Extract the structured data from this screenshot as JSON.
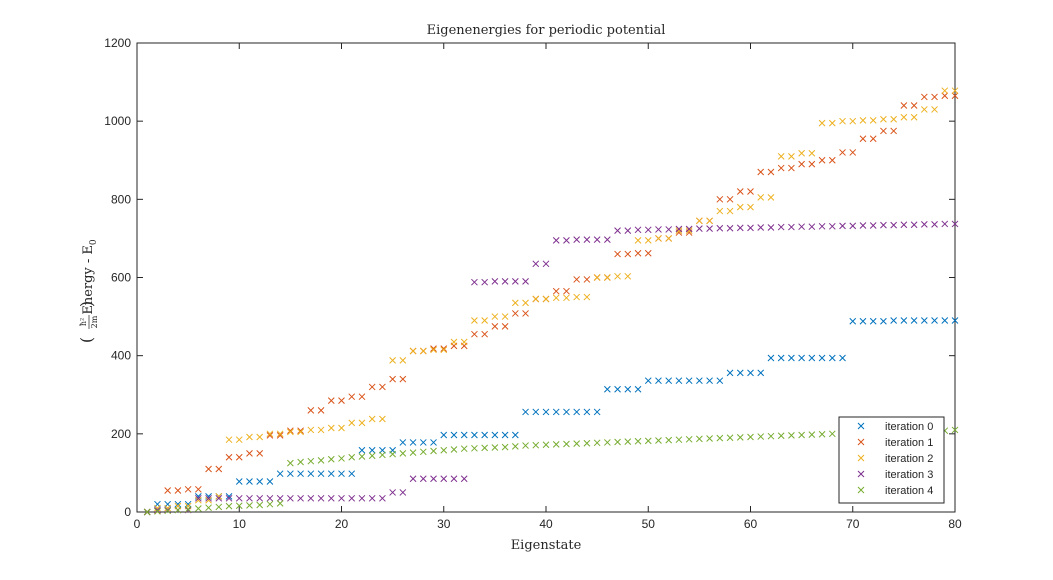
{
  "chart_data": {
    "type": "scatter",
    "title": "Eigenenergies for periodic potential",
    "xlabel": "Eigenstate",
    "ylabel": "Energy - E",
    "ylabel_sub": "0",
    "ylabel_unit_num": "ħ²",
    "ylabel_unit_den": "2m",
    "xlim": [
      0,
      80
    ],
    "ylim": [
      0,
      1200
    ],
    "xticks": [
      0,
      10,
      20,
      30,
      40,
      50,
      60,
      70,
      80
    ],
    "yticks": [
      0,
      200,
      400,
      600,
      800,
      1000,
      1200
    ],
    "grid": false,
    "legend_position": "bottom-right",
    "marker": "×",
    "series": [
      {
        "name": "iteration 0",
        "color": "#0072BD",
        "x": [
          1,
          2,
          3,
          4,
          5,
          6,
          7,
          8,
          9,
          10,
          11,
          12,
          13,
          14,
          15,
          16,
          17,
          18,
          19,
          20,
          21,
          22,
          23,
          24,
          25,
          26,
          27,
          28,
          29,
          30,
          31,
          32,
          33,
          34,
          35,
          36,
          37,
          38,
          39,
          40,
          41,
          42,
          43,
          44,
          45,
          46,
          47,
          48,
          49,
          50,
          51,
          52,
          53,
          54,
          55,
          56,
          57,
          58,
          59,
          60,
          61,
          62,
          63,
          64,
          65,
          66,
          67,
          68,
          69,
          70,
          71,
          72,
          73,
          74,
          75,
          76,
          77,
          78,
          79,
          80
        ],
        "y": [
          0,
          20,
          20,
          20,
          20,
          40,
          40,
          40,
          40,
          78,
          78,
          78,
          78,
          98,
          98,
          98,
          98,
          98,
          98,
          98,
          98,
          158,
          158,
          158,
          158,
          178,
          178,
          178,
          178,
          197,
          197,
          197,
          197,
          197,
          197,
          197,
          197,
          256,
          256,
          256,
          256,
          256,
          256,
          256,
          256,
          314,
          314,
          314,
          314,
          336,
          336,
          336,
          336,
          336,
          336,
          336,
          336,
          356,
          356,
          356,
          356,
          394,
          394,
          394,
          394,
          394,
          394,
          394,
          394,
          488,
          488,
          488,
          488,
          490,
          490,
          490,
          490,
          490,
          490,
          490
        ]
      },
      {
        "name": "iteration 1",
        "color": "#D95319",
        "x": [
          1,
          2,
          3,
          4,
          5,
          6,
          7,
          8,
          9,
          10,
          11,
          12,
          13,
          14,
          15,
          16,
          17,
          18,
          19,
          20,
          21,
          22,
          23,
          24,
          25,
          26,
          27,
          28,
          29,
          30,
          31,
          32,
          33,
          34,
          35,
          36,
          37,
          38,
          39,
          40,
          41,
          42,
          43,
          44,
          45,
          46,
          47,
          48,
          49,
          50,
          51,
          52,
          53,
          54,
          55,
          56,
          57,
          58,
          59,
          60,
          61,
          62,
          63,
          64,
          65,
          66,
          67,
          68,
          69,
          70,
          71,
          72,
          73,
          74,
          75,
          76,
          77,
          78,
          79,
          80
        ],
        "y": [
          0,
          2,
          55,
          55,
          58,
          58,
          110,
          110,
          140,
          140,
          150,
          150,
          196,
          196,
          208,
          208,
          260,
          260,
          285,
          285,
          295,
          295,
          320,
          320,
          340,
          340,
          412,
          412,
          418,
          418,
          425,
          425,
          455,
          455,
          475,
          475,
          508,
          508,
          545,
          545,
          565,
          565,
          595,
          595,
          600,
          600,
          660,
          660,
          662,
          662,
          700,
          700,
          715,
          715,
          745,
          745,
          800,
          800,
          820,
          820,
          870,
          870,
          880,
          880,
          890,
          890,
          900,
          900,
          920,
          920,
          955,
          955,
          975,
          975,
          1040,
          1040,
          1062,
          1062,
          1065,
          1065
        ]
      },
      {
        "name": "iteration 2",
        "color": "#EDB120",
        "x": [
          1,
          2,
          3,
          4,
          5,
          6,
          7,
          8,
          9,
          10,
          11,
          12,
          13,
          14,
          15,
          16,
          17,
          18,
          19,
          20,
          21,
          22,
          23,
          24,
          25,
          26,
          27,
          28,
          29,
          30,
          31,
          32,
          33,
          34,
          35,
          36,
          37,
          38,
          39,
          40,
          41,
          42,
          43,
          44,
          45,
          46,
          47,
          48,
          49,
          50,
          51,
          52,
          53,
          54,
          55,
          56,
          57,
          58,
          59,
          60,
          61,
          62,
          63,
          64,
          65,
          66,
          67,
          68,
          69,
          70,
          71,
          72,
          73,
          74,
          75,
          76,
          77,
          78,
          79,
          80
        ],
        "y": [
          0,
          10,
          10,
          15,
          15,
          30,
          30,
          40,
          185,
          185,
          192,
          192,
          200,
          200,
          205,
          205,
          210,
          210,
          215,
          215,
          228,
          228,
          238,
          238,
          388,
          388,
          412,
          412,
          415,
          415,
          435,
          435,
          490,
          490,
          500,
          500,
          535,
          535,
          545,
          545,
          548,
          548,
          550,
          550,
          600,
          600,
          603,
          603,
          695,
          695,
          700,
          700,
          720,
          720,
          745,
          745,
          770,
          770,
          780,
          780,
          805,
          805,
          910,
          910,
          918,
          918,
          995,
          995,
          1000,
          1000,
          1002,
          1002,
          1005,
          1005,
          1010,
          1010,
          1030,
          1030,
          1078,
          1078
        ]
      },
      {
        "name": "iteration 3",
        "color": "#7E2F8E",
        "x": [
          1,
          2,
          3,
          4,
          5,
          6,
          7,
          8,
          9,
          10,
          11,
          12,
          13,
          14,
          15,
          16,
          17,
          18,
          19,
          20,
          21,
          22,
          23,
          24,
          25,
          26,
          27,
          28,
          29,
          30,
          31,
          32,
          33,
          34,
          35,
          36,
          37,
          38,
          39,
          40,
          41,
          42,
          43,
          44,
          45,
          46,
          47,
          48,
          49,
          50,
          51,
          52,
          53,
          54,
          55,
          56,
          57,
          58,
          59,
          60,
          61,
          62,
          63,
          64,
          65,
          66,
          67,
          68,
          69,
          70,
          71,
          72,
          73,
          74,
          75,
          76,
          77,
          78,
          79,
          80
        ],
        "y": [
          0,
          5,
          5,
          5,
          5,
          35,
          35,
          35,
          35,
          35,
          35,
          35,
          35,
          35,
          35,
          35,
          35,
          35,
          35,
          35,
          35,
          35,
          35,
          35,
          50,
          50,
          85,
          85,
          85,
          85,
          85,
          85,
          588,
          588,
          590,
          590,
          590,
          590,
          635,
          635,
          695,
          695,
          697,
          697,
          697,
          697,
          720,
          720,
          722,
          722,
          723,
          723,
          724,
          724,
          725,
          725,
          726,
          726,
          727,
          727,
          728,
          728,
          729,
          729,
          730,
          730,
          731,
          731,
          732,
          732,
          733,
          733,
          734,
          734,
          735,
          735,
          736,
          736,
          737,
          737
        ]
      },
      {
        "name": "iteration 4",
        "color": "#77AC30",
        "x": [
          1,
          2,
          3,
          4,
          5,
          6,
          7,
          8,
          9,
          10,
          11,
          12,
          13,
          14,
          15,
          16,
          17,
          18,
          19,
          20,
          21,
          22,
          23,
          24,
          25,
          26,
          27,
          28,
          29,
          30,
          31,
          32,
          33,
          34,
          35,
          36,
          37,
          38,
          39,
          40,
          41,
          42,
          43,
          44,
          45,
          46,
          47,
          48,
          49,
          50,
          51,
          52,
          53,
          54,
          55,
          56,
          57,
          58,
          59,
          60,
          61,
          62,
          63,
          64,
          65,
          66,
          67,
          68,
          69,
          70,
          71,
          72,
          73,
          74,
          75,
          76,
          77,
          78,
          79,
          80
        ],
        "y": [
          0,
          2,
          3,
          5,
          7,
          9,
          11,
          13,
          15,
          16,
          17,
          18,
          20,
          22,
          125,
          128,
          130,
          132,
          135,
          137,
          140,
          142,
          144,
          146,
          148,
          150,
          152,
          154,
          156,
          158,
          160,
          162,
          163,
          164,
          165,
          166,
          168,
          170,
          171,
          172,
          173,
          174,
          175,
          176,
          177,
          178,
          179,
          180,
          181,
          182,
          183,
          184,
          185,
          186,
          187,
          188,
          189,
          190,
          191,
          192,
          193,
          194,
          195,
          196,
          197,
          198,
          199,
          200,
          201,
          202,
          203,
          203,
          204,
          204,
          205,
          205,
          206,
          207,
          208,
          210
        ]
      }
    ]
  }
}
